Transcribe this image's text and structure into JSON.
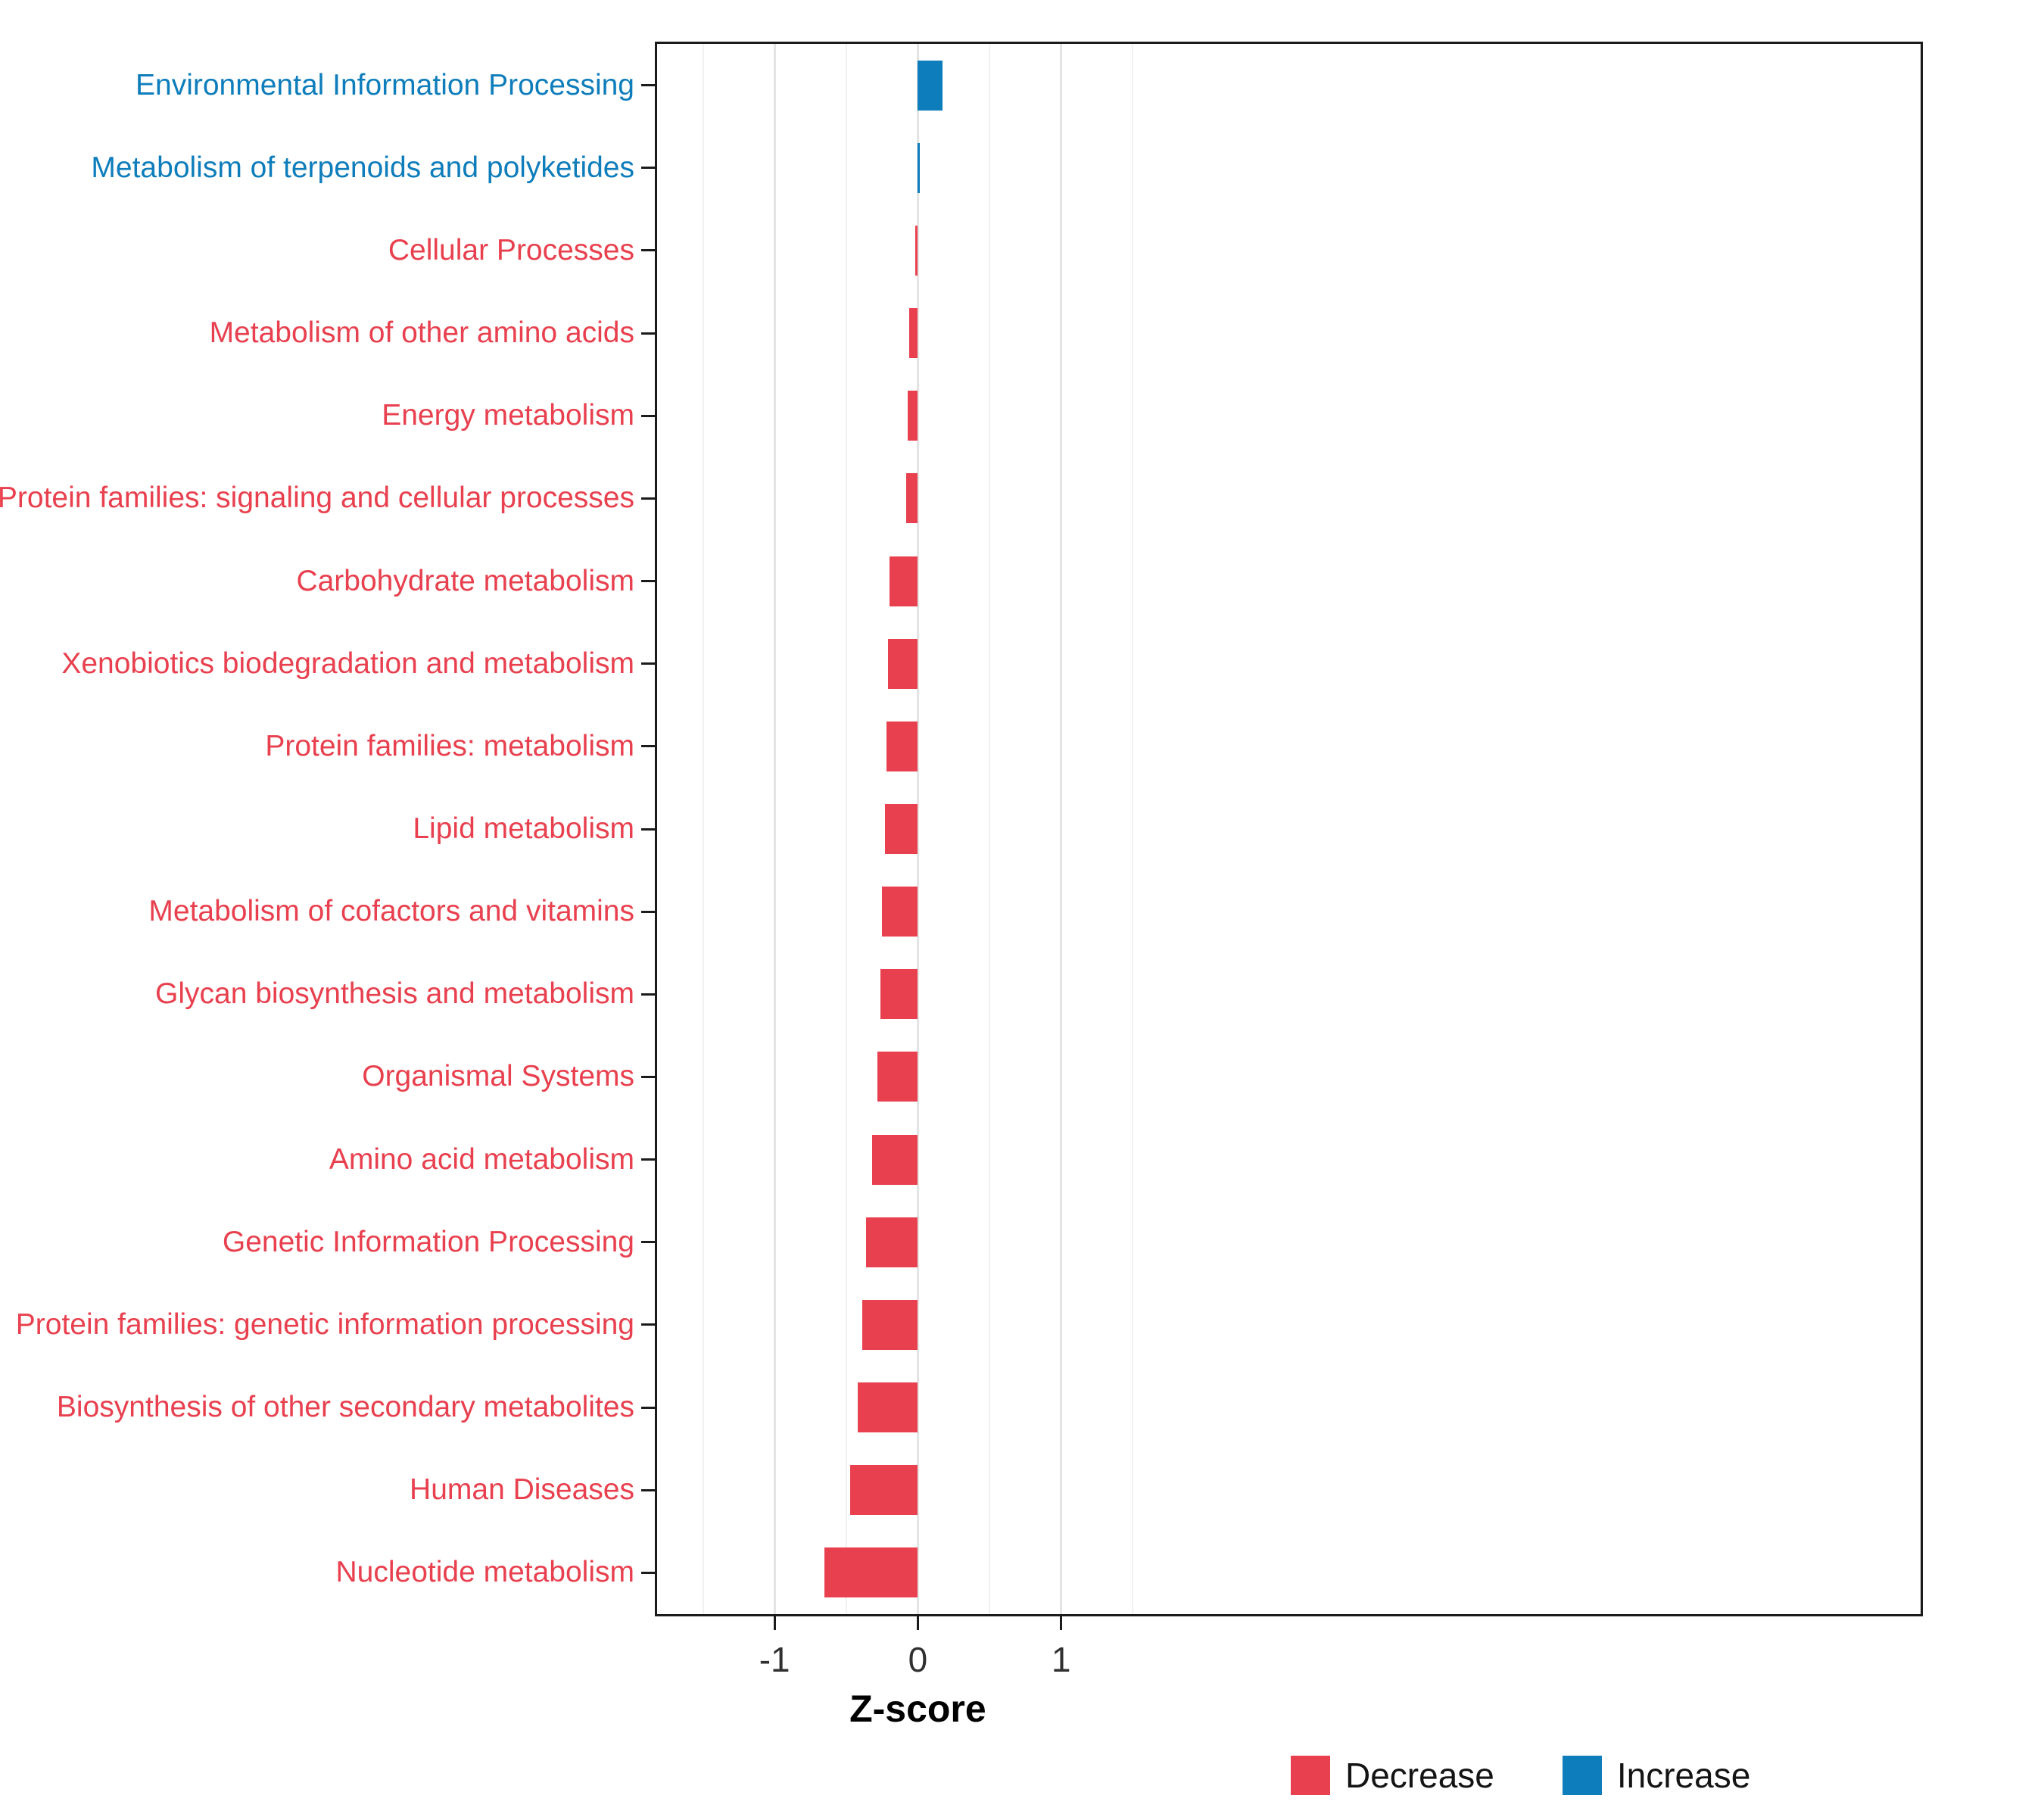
{
  "chart_data": {
    "type": "bar",
    "orientation": "horizontal",
    "title": "",
    "xlabel": "Z-score",
    "ylabel": "",
    "xlim": [
      -1.82,
      7.0
    ],
    "x_ticks": [
      -1,
      0,
      1
    ],
    "x_minor_ticks": [
      -1.5,
      -0.5,
      0.5,
      1.5
    ],
    "grid": "on",
    "legend_position": "bottom",
    "colors": {
      "Decrease": "#E8404E",
      "Increase": "#0E7DBB"
    },
    "bars": [
      {
        "category": "Environmental Information Processing",
        "value": 0.17,
        "direction": "Increase"
      },
      {
        "category": "Metabolism of terpenoids and polyketides",
        "value": 0.01,
        "direction": "Increase"
      },
      {
        "category": "Cellular Processes",
        "value": -0.01,
        "direction": "Decrease"
      },
      {
        "category": "Metabolism of other amino acids",
        "value": -0.06,
        "direction": "Decrease"
      },
      {
        "category": "Energy metabolism",
        "value": -0.07,
        "direction": "Decrease"
      },
      {
        "category": "Protein families: signaling and cellular processes",
        "value": -0.08,
        "direction": "Decrease"
      },
      {
        "category": "Carbohydrate metabolism",
        "value": -0.2,
        "direction": "Decrease"
      },
      {
        "category": "Xenobiotics biodegradation and metabolism",
        "value": -0.21,
        "direction": "Decrease"
      },
      {
        "category": "Protein families: metabolism",
        "value": -0.22,
        "direction": "Decrease"
      },
      {
        "category": "Lipid metabolism",
        "value": -0.23,
        "direction": "Decrease"
      },
      {
        "category": "Metabolism of cofactors and vitamins",
        "value": -0.25,
        "direction": "Decrease"
      },
      {
        "category": "Glycan biosynthesis and metabolism",
        "value": -0.26,
        "direction": "Decrease"
      },
      {
        "category": "Organismal Systems",
        "value": -0.28,
        "direction": "Decrease"
      },
      {
        "category": "Amino acid metabolism",
        "value": -0.32,
        "direction": "Decrease"
      },
      {
        "category": "Genetic Information Processing",
        "value": -0.36,
        "direction": "Decrease"
      },
      {
        "category": "Protein families: genetic information processing",
        "value": -0.39,
        "direction": "Decrease"
      },
      {
        "category": "Biosynthesis of other secondary metabolites",
        "value": -0.42,
        "direction": "Decrease"
      },
      {
        "category": "Human Diseases",
        "value": -0.47,
        "direction": "Decrease"
      },
      {
        "category": "Nucleotide metabolism",
        "value": -0.65,
        "direction": "Decrease"
      }
    ],
    "legend": [
      {
        "label": "Decrease",
        "key": "Decrease"
      },
      {
        "label": "Increase",
        "key": "Increase"
      }
    ]
  }
}
